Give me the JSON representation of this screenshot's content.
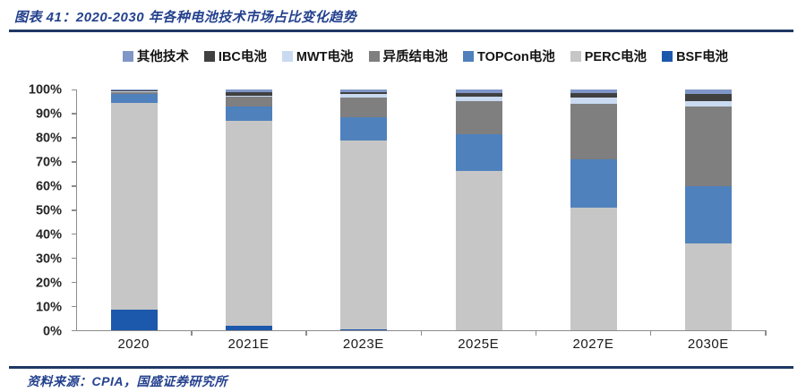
{
  "header": {
    "title": "图表 41：2020-2030 年各种电池技术市场占比变化趋势"
  },
  "footer": {
    "source": "资料来源：CPIA，国盛证券研究所"
  },
  "colors": {
    "accent_navy": "#1f3864",
    "title_navy": "#24418e",
    "axis_gray": "#8c8c8c"
  },
  "chart_data": {
    "type": "bar",
    "stacked": true,
    "unit": "%",
    "title": "2020-2030 年各种电池技术市场占比变化趋势",
    "categories": [
      "2020",
      "2021E",
      "2023E",
      "2025E",
      "2027E",
      "2030E"
    ],
    "series": [
      {
        "key": "other-tech",
        "name": "其他技术",
        "color": "#8096c8",
        "values": [
          0.5,
          1.0,
          1.0,
          1.5,
          1.5,
          2.0
        ]
      },
      {
        "key": "ibc",
        "name": "IBC电池",
        "color": "#404040",
        "values": [
          0.2,
          1.5,
          1.0,
          1.5,
          2.0,
          3.0
        ]
      },
      {
        "key": "mwt",
        "name": "MWT电池",
        "color": "#c9daf1",
        "values": [
          0.3,
          0.5,
          1.5,
          2.0,
          2.5,
          2.0
        ]
      },
      {
        "key": "hjt",
        "name": "异质结电池",
        "color": "#7f7f7f",
        "values": [
          1.0,
          4.0,
          8.0,
          13.5,
          23.0,
          33.0
        ]
      },
      {
        "key": "topcon",
        "name": "TOPCon电池",
        "color": "#4f81bd",
        "values": [
          3.5,
          6.0,
          9.5,
          15.5,
          20.0,
          24.0
        ]
      },
      {
        "key": "perc",
        "name": "PERC电池",
        "color": "#c6c6c6",
        "values": [
          86.0,
          85.0,
          78.5,
          66.0,
          51.0,
          36.0
        ]
      },
      {
        "key": "bsf",
        "name": "BSF电池",
        "color": "#1c58ac",
        "values": [
          8.5,
          2.0,
          0.5,
          0.0,
          0.0,
          0.0
        ]
      }
    ],
    "stack_order_note": "series listed in legend order (left to right); bars stack bottom-to-top in reverse of this order (BSF at bottom, 其他技术 at top)",
    "y_ticks": [
      "0%",
      "10%",
      "20%",
      "30%",
      "40%",
      "50%",
      "60%",
      "70%",
      "80%",
      "90%",
      "100%"
    ],
    "ylim": [
      0,
      100
    ],
    "grid": false,
    "legend_position": "top"
  }
}
